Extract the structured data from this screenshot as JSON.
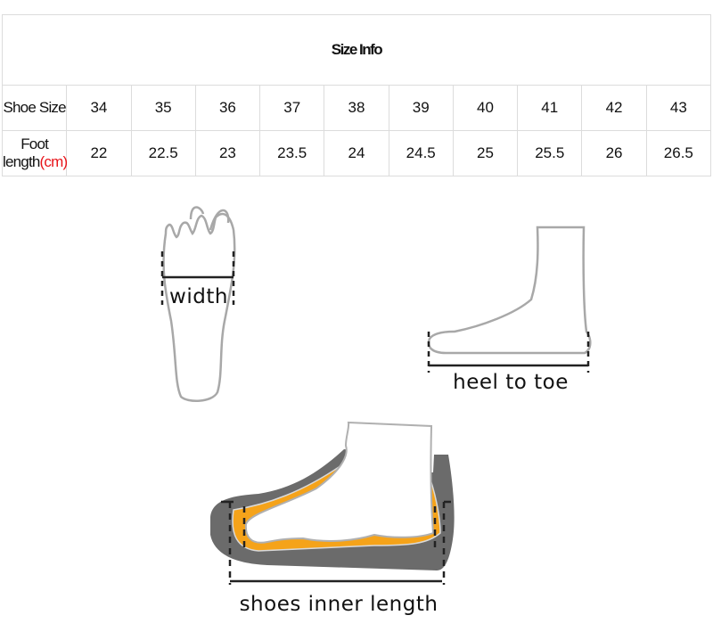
{
  "title": "Size Info",
  "table": {
    "row_labels": {
      "size": "Shoe Size",
      "length": "Foot length",
      "length_unit": "(cm)"
    },
    "sizes": [
      "34",
      "35",
      "36",
      "37",
      "38",
      "39",
      "40",
      "41",
      "42",
      "43"
    ],
    "foot_length_cm": [
      "22",
      "22.5",
      "23",
      "23.5",
      "24",
      "24.5",
      "25",
      "25.5",
      "26",
      "26.5"
    ]
  },
  "diagrams": {
    "width_label": "width",
    "heel_to_toe_label": "heel to toe",
    "inner_length_label": "shoes inner length"
  },
  "colors": {
    "accent_red": "#e8141a",
    "insole_orange": "#f5a31a",
    "shoe_gray": "#6b6b6b"
  }
}
